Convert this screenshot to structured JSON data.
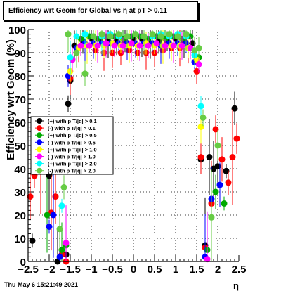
{
  "title": "Efficiency wrt Geom for Global vs   η at pT > 0.11",
  "datestamp": "Thu May  6 15:21:49 2021",
  "chart_data": {
    "type": "scatter",
    "xlabel": "η",
    "ylabel": "Efficiency wrt Geom (%)",
    "xlim": [
      -2.5,
      2.5
    ],
    "ylim": [
      0,
      100
    ],
    "xticks": [
      -2.5,
      -2,
      -1.5,
      -1,
      -0.5,
      0,
      0.5,
      1,
      1.5,
      2,
      2.5
    ],
    "xtick_labels": [
      "−2.5",
      "−2",
      "−1.5",
      "−1",
      "−0.5",
      "0",
      "0.5",
      "1",
      "1.5",
      "2",
      "2.5"
    ],
    "yticks": [
      0,
      10,
      20,
      30,
      40,
      50,
      60,
      70,
      80,
      90,
      100
    ],
    "ytick_labels": [
      "0",
      "10",
      "20",
      "30",
      "40",
      "50",
      "60",
      "70",
      "80",
      "90",
      "100"
    ],
    "grid": true,
    "legend_position": "left-middle",
    "series": [
      {
        "name": "(+) with p T/|q| > 0.1",
        "color": "#000000",
        "x": [
          -2.4,
          -2.0,
          -1.8,
          -1.6,
          -1.55,
          -1.5,
          -1.4,
          -1.2,
          -1.0,
          -0.8,
          -0.6,
          -0.4,
          -0.2,
          0.0,
          0.2,
          0.4,
          0.6,
          0.8,
          1.0,
          1.2,
          1.4,
          1.5,
          1.6,
          1.7,
          1.8,
          1.9,
          2.0,
          2.2,
          2.4
        ],
        "y": [
          9,
          37,
          0,
          3,
          68,
          78,
          93,
          95,
          96,
          96,
          95,
          95,
          95,
          96,
          96,
          94,
          95,
          95,
          96,
          95,
          94,
          88,
          44,
          7,
          45,
          40,
          41,
          39,
          66
        ]
      },
      {
        "name": "(-) with p T/|q| > 0.1",
        "color": "#ff0000",
        "x": [
          -2.45,
          -2.35,
          -2.2,
          -1.95,
          -1.85,
          -1.7,
          -1.6,
          -1.5,
          -1.3,
          -1.1,
          -0.9,
          -0.7,
          -0.5,
          -0.3,
          -0.1,
          0.1,
          0.3,
          0.5,
          0.7,
          0.9,
          1.1,
          1.3,
          1.5,
          1.6,
          1.7,
          1.85,
          1.95,
          2.1,
          2.25,
          2.35,
          2.45
        ],
        "y": [
          28,
          37,
          41,
          21,
          28,
          3,
          0,
          79,
          92,
          93,
          91,
          90,
          90,
          90,
          91,
          90,
          90,
          90,
          91,
          92,
          92,
          92,
          82,
          45,
          6,
          25,
          57,
          44,
          34,
          45,
          53
        ]
      },
      {
        "name": "(+) with p T/|q| > 0.5",
        "color": "#00aa00",
        "x": [
          -2.05,
          -1.7,
          -1.6,
          -1.45,
          -1.25,
          -1.05,
          -0.85,
          -0.65,
          -0.45,
          -0.25,
          -0.05,
          0.15,
          0.35,
          0.55,
          0.75,
          0.95,
          1.15,
          1.35,
          1.55,
          1.75,
          1.95,
          2.15
        ],
        "y": [
          20,
          5,
          7,
          87,
          96,
          97,
          96,
          97,
          97,
          96,
          97,
          97,
          96,
          97,
          96,
          97,
          96,
          97,
          88,
          5,
          30,
          25
        ]
      },
      {
        "name": "(-) with p T/|q| > 0.5",
        "color": "#0000ff",
        "x": [
          -2.0,
          -1.9,
          -1.75,
          -1.55,
          -1.35,
          -1.15,
          -0.95,
          -0.75,
          -0.55,
          -0.35,
          -0.15,
          0.05,
          0.25,
          0.45,
          0.65,
          0.85,
          1.05,
          1.25,
          1.45,
          1.7,
          1.85,
          2.05
        ],
        "y": [
          15,
          20,
          2,
          80,
          92,
          94,
          94,
          94,
          94,
          94,
          94,
          94,
          94,
          94,
          93,
          94,
          94,
          94,
          86,
          2,
          27,
          33
        ]
      },
      {
        "name": "(+) with p T/|q| > 1.0",
        "color": "#ffff00",
        "x": [
          -1.5,
          -1.3,
          -1.1,
          -0.9,
          -0.7,
          -0.5,
          -0.3,
          -0.1,
          0.1,
          0.3,
          0.5,
          0.7,
          0.9,
          1.1,
          1.3,
          1.5,
          1.6
        ],
        "y": [
          82,
          92,
          93,
          93,
          93,
          94,
          93,
          93,
          93,
          94,
          93,
          93,
          93,
          93,
          92,
          87,
          58
        ]
      },
      {
        "name": "(-) with p T/|q| > 1.0",
        "color": "#ff00ff",
        "x": [
          -1.6,
          -1.45,
          -1.25,
          -1.05,
          -0.85,
          -0.65,
          -0.45,
          -0.25,
          -0.05,
          0.15,
          0.35,
          0.55,
          0.75,
          0.95,
          1.15,
          1.35,
          1.55,
          1.75
        ],
        "y": [
          8,
          87,
          93,
          93,
          93,
          94,
          93,
          93,
          94,
          93,
          93,
          94,
          93,
          93,
          93,
          92,
          85,
          1
        ]
      },
      {
        "name": "(+) with p T/|q| > 2.0",
        "color": "#00ffff",
        "x": [
          -1.7,
          -1.5,
          -1.35,
          -1.15,
          -0.95,
          -0.75,
          -0.55,
          -0.35,
          -0.15,
          0.05,
          0.25,
          0.45,
          0.65,
          0.85,
          1.05,
          1.25,
          1.45,
          1.6
        ],
        "y": [
          24,
          88,
          97,
          98,
          97,
          97,
          98,
          97,
          97,
          98,
          97,
          97,
          98,
          97,
          98,
          97,
          89,
          67
        ]
      },
      {
        "name": "(-) with p T/|q| > 2.0",
        "color": "#66cc44",
        "x": [
          -1.75,
          -1.65,
          -1.55,
          -1.35,
          -1.15,
          -0.95,
          -0.75,
          -0.55,
          -0.35,
          -0.15,
          0.05,
          0.25,
          0.45,
          0.65,
          0.85,
          1.05,
          1.25,
          1.45,
          1.55,
          1.65,
          1.85,
          2.0
        ],
        "y": [
          14,
          32,
          98,
          90,
          81,
          97,
          98,
          97,
          98,
          97,
          98,
          97,
          98,
          97,
          98,
          97,
          98,
          91,
          92,
          62,
          19,
          50
        ]
      }
    ]
  }
}
